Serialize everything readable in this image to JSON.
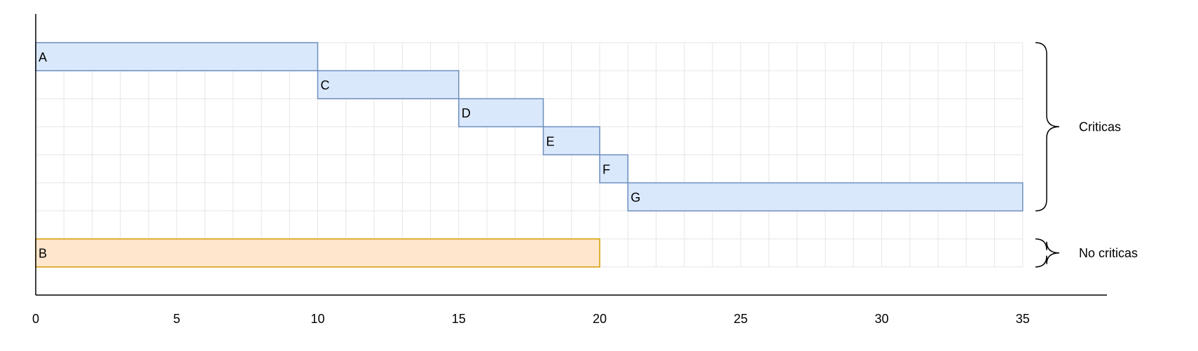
{
  "chart_data": {
    "type": "gantt",
    "title": "",
    "xlabel": "",
    "ylabel": "",
    "xlim": [
      0,
      35
    ],
    "x_ticks": [
      0,
      5,
      10,
      15,
      20,
      25,
      30,
      35
    ],
    "grid": true,
    "tasks": [
      {
        "label": "A",
        "start": 0,
        "end": 10,
        "group": "critical"
      },
      {
        "label": "C",
        "start": 10,
        "end": 15,
        "group": "critical"
      },
      {
        "label": "D",
        "start": 15,
        "end": 18,
        "group": "critical"
      },
      {
        "label": "E",
        "start": 18,
        "end": 20,
        "group": "critical"
      },
      {
        "label": "F",
        "start": 20,
        "end": 21,
        "group": "critical"
      },
      {
        "label": "G",
        "start": 21,
        "end": 35,
        "group": "critical"
      },
      {
        "label": "B",
        "start": 0,
        "end": 20,
        "group": "noncritical"
      }
    ],
    "groups": [
      {
        "id": "critical",
        "label": "Criticas",
        "fill": "#dae8fc",
        "stroke": "#6c8ebf"
      },
      {
        "id": "noncritical",
        "label": "No criticas",
        "fill": "#ffe6cc",
        "stroke": "#d79b00"
      }
    ]
  }
}
